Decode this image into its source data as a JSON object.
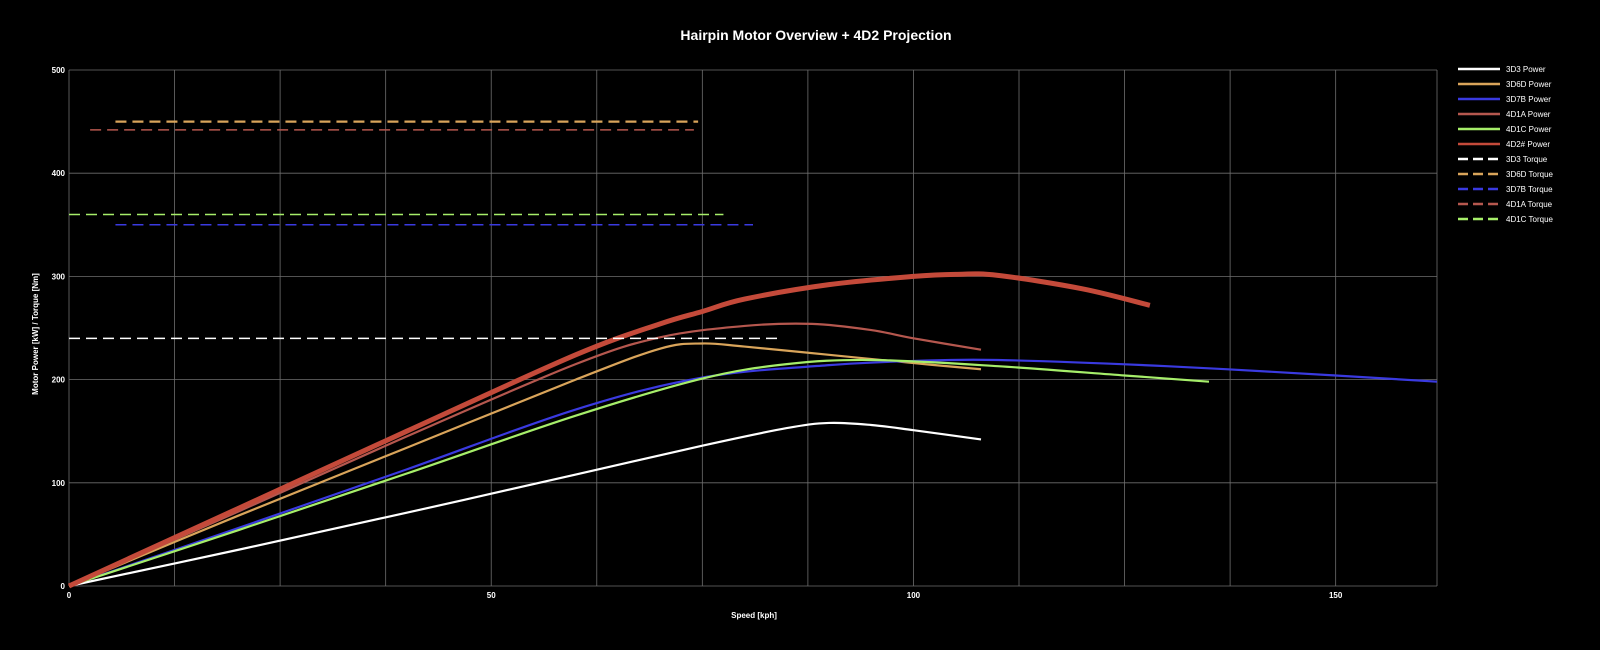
{
  "chart_data": {
    "type": "line",
    "title": "Hairpin Motor Overview + 4D2 Projection",
    "xlabel": "Speed [kph]",
    "ylabel": "Motor Power [kW] / Torque [Nm]",
    "xlim": [
      0,
      162
    ],
    "ylim": [
      0,
      500
    ],
    "xticks": [
      0,
      50,
      100,
      150
    ],
    "yticks": [
      0,
      100,
      200,
      300,
      400,
      500
    ],
    "grid": true,
    "legend_position": "right",
    "series": [
      {
        "name": "3D3 Power",
        "kind": "power",
        "color": "#ffffff",
        "width": 2.2,
        "x": [
          0,
          20,
          40,
          60,
          75,
          85,
          90,
          95,
          100,
          108
        ],
        "y": [
          0,
          35,
          71,
          108,
          136,
          153,
          158,
          156,
          151,
          142
        ]
      },
      {
        "name": "3D6D Power",
        "kind": "power",
        "color": "#d9a45a",
        "width": 2.2,
        "x": [
          0,
          20,
          40,
          60,
          70,
          75,
          80,
          90,
          100,
          108
        ],
        "y": [
          0,
          68,
          134,
          200,
          230,
          235,
          232,
          224,
          216,
          210
        ]
      },
      {
        "name": "3D7B Power",
        "kind": "power",
        "color": "#3a3ae0",
        "width": 2.2,
        "x": [
          0,
          20,
          40,
          60,
          75,
          90,
          100,
          110,
          130,
          150,
          162
        ],
        "y": [
          0,
          56,
          113,
          171,
          202,
          214,
          218,
          219,
          213,
          204,
          198
        ]
      },
      {
        "name": "4D1A Power",
        "kind": "power",
        "color": "#b5574e",
        "width": 2.2,
        "x": [
          0,
          20,
          40,
          60,
          70,
          80,
          88,
          95,
          100,
          108
        ],
        "y": [
          0,
          72,
          145,
          215,
          241,
          252,
          254,
          248,
          240,
          229
        ]
      },
      {
        "name": "4D1C Power",
        "kind": "power",
        "color": "#a6ee6a",
        "width": 2.2,
        "x": [
          0,
          20,
          40,
          60,
          75,
          85,
          95,
          110,
          125,
          135
        ],
        "y": [
          0,
          54,
          109,
          165,
          201,
          215,
          219,
          213,
          204,
          198
        ]
      },
      {
        "name": "4D2# Power",
        "kind": "power",
        "color": "#c44a3a",
        "width": 5,
        "x": [
          0,
          20,
          40,
          60,
          70,
          75,
          80,
          90,
          100,
          105,
          110,
          120,
          128
        ],
        "y": [
          0,
          75,
          150,
          224,
          254,
          266,
          278,
          292,
          300,
          302,
          301,
          288,
          272
        ]
      },
      {
        "name": "3D3 Torque",
        "kind": "torque",
        "color": "#ffffff",
        "width": 1.5,
        "x": [
          0,
          84
        ],
        "y": [
          240,
          240
        ]
      },
      {
        "name": "3D6D Torque",
        "kind": "torque",
        "color": "#d9a45a",
        "width": 2.2,
        "x": [
          5.5,
          74.5
        ],
        "y": [
          450,
          450
        ]
      },
      {
        "name": "3D7B Torque",
        "kind": "torque",
        "color": "#3a3ae0",
        "width": 1.5,
        "x": [
          5.5,
          81
        ],
        "y": [
          350,
          350
        ]
      },
      {
        "name": "4D1A Torque",
        "kind": "torque",
        "color": "#b5574e",
        "width": 1.5,
        "x": [
          2.5,
          74
        ],
        "y": [
          442,
          442
        ]
      },
      {
        "name": "4D1C Torque",
        "kind": "torque",
        "color": "#a6ee6a",
        "width": 1.5,
        "x": [
          0,
          77.5
        ],
        "y": [
          360,
          360
        ]
      }
    ]
  }
}
